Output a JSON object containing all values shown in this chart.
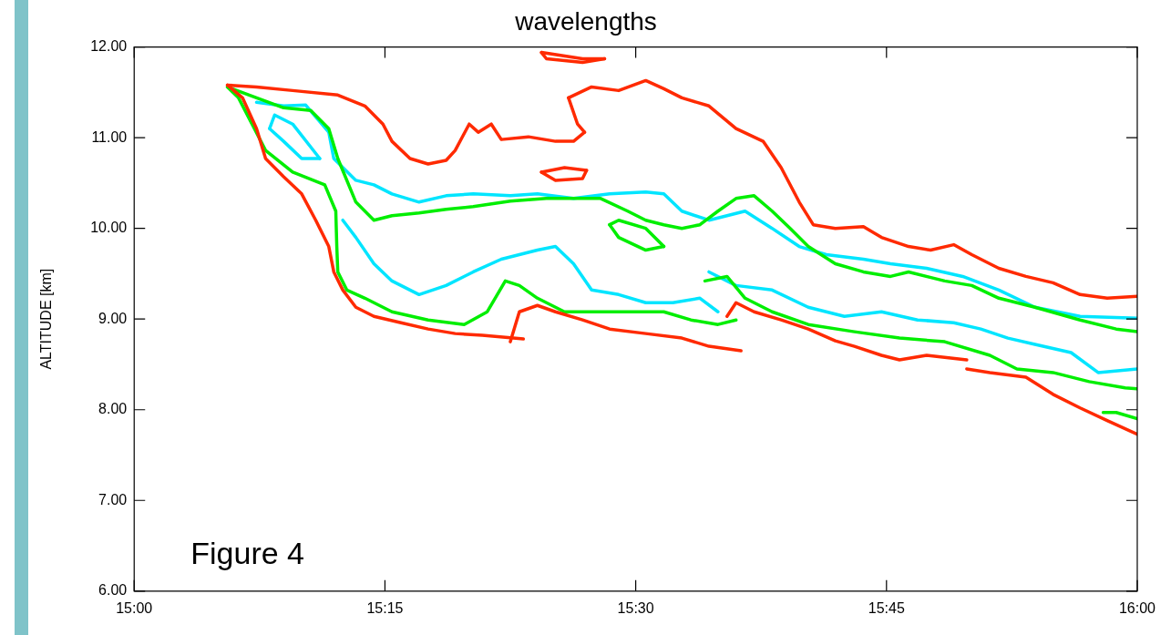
{
  "chart_data": {
    "type": "line",
    "title": "wavelengths",
    "ylabel": "ALTITUDE [km]",
    "annotations": [
      "Figure 4"
    ],
    "xlim": [
      15,
      16
    ],
    "xticks": [
      {
        "value": 15,
        "label": "15:00"
      },
      {
        "value": 15.25,
        "label": "15:15"
      },
      {
        "value": 15.5,
        "label": "15:30"
      },
      {
        "value": 15.75,
        "label": "15:45"
      },
      {
        "value": 16,
        "label": "16:00"
      }
    ],
    "ylim": [
      6,
      12
    ],
    "yticks": [
      {
        "value": 6,
        "label": "6.00"
      },
      {
        "value": 7,
        "label": "7.00"
      },
      {
        "value": 8,
        "label": "8.00"
      },
      {
        "value": 9,
        "label": "9.00"
      },
      {
        "value": 10,
        "label": "10.00"
      },
      {
        "value": 11,
        "label": "11.00"
      },
      {
        "value": 12,
        "label": "12.00"
      }
    ],
    "series": [
      {
        "color": "#ff2a00",
        "x": [
          15.093,
          15.122,
          15.158,
          15.203,
          15.23,
          15.248,
          15.257,
          15.275,
          15.293,
          15.311,
          15.32,
          15.334,
          15.343,
          15.356,
          15.366,
          15.393,
          15.42,
          15.438,
          15.449
        ],
        "values": [
          11.58,
          11.56,
          11.52,
          11.47,
          11.35,
          11.15,
          10.96,
          10.77,
          10.71,
          10.75,
          10.86,
          11.15,
          11.06,
          11.15,
          10.98,
          11.01,
          10.96,
          10.96,
          11.06
        ]
      },
      {
        "color": "#ff2a00",
        "x": [
          15.433,
          15.442,
          15.449
        ],
        "values": [
          11.44,
          11.15,
          11.06
        ]
      },
      {
        "color": "#ff2a00",
        "x": [
          15.433,
          15.456,
          15.483,
          15.51,
          15.528,
          15.546,
          15.573,
          15.6,
          15.627,
          15.645,
          15.663,
          15.677,
          15.699,
          15.727,
          15.745,
          15.772,
          15.794,
          15.817,
          15.835,
          15.862,
          15.889,
          15.916,
          15.943,
          15.97,
          16
        ],
        "values": [
          11.44,
          11.56,
          11.52,
          11.63,
          11.54,
          11.44,
          11.35,
          11.1,
          10.96,
          10.67,
          10.29,
          10.04,
          10.0,
          10.02,
          9.9,
          9.8,
          9.76,
          9.82,
          9.71,
          9.56,
          9.47,
          9.4,
          9.27,
          9.23,
          9.25
        ]
      },
      {
        "color": "#ff2a00",
        "x": [
          15.093,
          15.108,
          15.122,
          15.131,
          15.149,
          15.167,
          15.181,
          15.194,
          15.199,
          15.208,
          15.221,
          15.239,
          15.266,
          15.293,
          15.32,
          15.347,
          15.388
        ],
        "values": [
          11.58,
          11.44,
          11.1,
          10.77,
          10.57,
          10.38,
          10.09,
          9.8,
          9.52,
          9.32,
          9.13,
          9.03,
          8.96,
          8.89,
          8.84,
          8.82,
          8.78
        ]
      },
      {
        "color": "#ff2a00",
        "x": [
          15.375,
          15.384,
          15.402,
          15.42,
          15.447,
          15.474,
          15.51,
          15.546,
          15.573,
          15.605
        ],
        "values": [
          8.75,
          9.08,
          9.15,
          9.08,
          8.99,
          8.89,
          8.84,
          8.79,
          8.7,
          8.65
        ]
      },
      {
        "color": "#ff2a00",
        "x": [
          15.591,
          15.6,
          15.618,
          15.645,
          15.672,
          15.699,
          15.718,
          15.745,
          15.763,
          15.79,
          15.83
        ],
        "values": [
          9.03,
          9.18,
          9.08,
          8.99,
          8.89,
          8.76,
          8.7,
          8.6,
          8.55,
          8.6,
          8.55
        ]
      },
      {
        "color": "#ff2a00",
        "x": [
          15.83,
          15.853,
          15.889,
          15.916,
          15.943,
          15.97,
          16
        ],
        "values": [
          8.45,
          8.41,
          8.36,
          8.17,
          8.02,
          7.88,
          7.73
        ]
      },
      {
        "color": "#ff2a00",
        "x": [
          15.406,
          15.429,
          15.451
        ],
        "values": [
          10.62,
          10.67,
          10.64
        ]
      },
      {
        "color": "#ff2a00",
        "x": [
          15.406,
          15.42,
          15.447,
          15.451
        ],
        "values": [
          10.62,
          10.53,
          10.55,
          10.64
        ]
      },
      {
        "color": "#ff2a00",
        "x": [
          15.406,
          15.447,
          15.469
        ],
        "values": [
          11.94,
          11.87,
          11.87
        ]
      },
      {
        "color": "#ff2a00",
        "x": [
          15.406,
          15.411,
          15.447,
          15.469
        ],
        "values": [
          11.94,
          11.87,
          11.83,
          11.87
        ]
      },
      {
        "color": "#00ee00",
        "x": [
          15.093,
          15.122,
          15.149,
          15.176,
          15.194,
          15.203,
          15.221,
          15.239,
          15.257,
          15.284,
          15.311,
          15.338,
          15.375,
          15.411,
          15.438,
          15.465,
          15.492,
          15.51,
          15.528,
          15.546,
          15.564,
          15.582,
          15.6,
          15.618,
          15.636,
          15.654,
          15.672,
          15.699,
          15.727,
          15.754,
          15.772,
          15.808,
          15.835,
          15.862,
          15.898,
          15.943,
          15.979,
          16
        ],
        "values": [
          11.56,
          11.44,
          11.33,
          11.3,
          11.1,
          10.77,
          10.29,
          10.09,
          10.14,
          10.17,
          10.21,
          10.24,
          10.3,
          10.33,
          10.33,
          10.33,
          10.19,
          10.09,
          10.04,
          10.0,
          10.04,
          10.19,
          10.33,
          10.36,
          10.19,
          10.0,
          9.8,
          9.61,
          9.52,
          9.47,
          9.52,
          9.42,
          9.37,
          9.23,
          9.13,
          8.99,
          8.89,
          8.86
        ]
      },
      {
        "color": "#00ee00",
        "x": [
          15.093,
          15.104,
          15.131,
          15.158,
          15.19,
          15.201,
          15.202,
          15.203,
          15.212,
          15.23,
          15.257,
          15.293,
          15.329,
          15.352,
          15.37,
          15.384,
          15.402,
          15.429,
          15.456,
          15.492,
          15.528,
          15.555,
          15.582,
          15.6
        ],
        "values": [
          11.56,
          11.44,
          10.86,
          10.62,
          10.48,
          10.19,
          9.8,
          9.52,
          9.32,
          9.23,
          9.08,
          8.99,
          8.94,
          9.08,
          9.42,
          9.37,
          9.23,
          9.08,
          9.08,
          9.08,
          9.08,
          8.99,
          8.94,
          8.99
        ]
      },
      {
        "color": "#00ee00",
        "x": [
          15.569,
          15.591,
          15.609,
          15.636,
          15.672,
          15.718,
          15.763,
          15.808,
          15.853,
          15.88,
          15.916,
          15.952,
          15.988,
          16
        ],
        "values": [
          9.42,
          9.47,
          9.23,
          9.08,
          8.94,
          8.86,
          8.79,
          8.75,
          8.6,
          8.45,
          8.41,
          8.31,
          8.24,
          8.23
        ]
      },
      {
        "color": "#00ee00",
        "x": [
          15.966,
          15.979,
          16
        ],
        "values": [
          7.97,
          7.97,
          7.9
        ]
      },
      {
        "color": "#00ee00",
        "x": [
          15.474,
          15.483,
          15.51,
          15.528
        ],
        "values": [
          10.04,
          10.09,
          10.0,
          9.8
        ]
      },
      {
        "color": "#00ee00",
        "x": [
          15.474,
          15.483,
          15.51,
          15.528
        ],
        "values": [
          10.04,
          9.9,
          9.76,
          9.8
        ]
      },
      {
        "color": "#00e5ff",
        "x": [
          15.122,
          15.149,
          15.171,
          15.194,
          15.199,
          15.221,
          15.239,
          15.257,
          15.284,
          15.311,
          15.338,
          15.375,
          15.402,
          15.438,
          15.474,
          15.51,
          15.528,
          15.546,
          15.573,
          15.609,
          15.636,
          15.663,
          15.69,
          15.727,
          15.754,
          15.79,
          15.826,
          15.862,
          15.898,
          15.943,
          16
        ],
        "values": [
          11.39,
          11.35,
          11.36,
          11.06,
          10.77,
          10.53,
          10.48,
          10.38,
          10.29,
          10.36,
          10.38,
          10.36,
          10.38,
          10.33,
          10.38,
          10.4,
          10.38,
          10.19,
          10.09,
          10.19,
          10.0,
          9.8,
          9.71,
          9.66,
          9.61,
          9.56,
          9.47,
          9.32,
          9.13,
          9.03,
          9.01
        ]
      },
      {
        "color": "#00e5ff",
        "x": [
          15.208,
          15.221,
          15.239,
          15.257,
          15.284,
          15.311,
          15.338,
          15.366,
          15.402,
          15.42,
          15.438,
          15.456,
          15.483,
          15.51,
          15.537,
          15.564,
          15.582
        ],
        "values": [
          10.09,
          9.9,
          9.61,
          9.42,
          9.27,
          9.37,
          9.52,
          9.66,
          9.76,
          9.8,
          9.61,
          9.32,
          9.27,
          9.18,
          9.18,
          9.23,
          9.08
        ]
      },
      {
        "color": "#00e5ff",
        "x": [
          15.573,
          15.6,
          15.636,
          15.672,
          15.708,
          15.745,
          15.781,
          15.817,
          15.844,
          15.871,
          15.898,
          15.934,
          15.961,
          16
        ],
        "values": [
          9.52,
          9.37,
          9.32,
          9.13,
          9.03,
          9.08,
          8.99,
          8.96,
          8.89,
          8.79,
          8.72,
          8.63,
          8.41,
          8.45
        ]
      },
      {
        "color": "#00e5ff",
        "x": [
          15.135,
          15.14,
          15.158,
          15.185
        ],
        "values": [
          11.1,
          11.25,
          11.15,
          10.77
        ]
      },
      {
        "color": "#00e5ff",
        "x": [
          15.135,
          15.149,
          15.167,
          15.185
        ],
        "values": [
          11.1,
          10.96,
          10.77,
          10.77
        ]
      }
    ]
  }
}
